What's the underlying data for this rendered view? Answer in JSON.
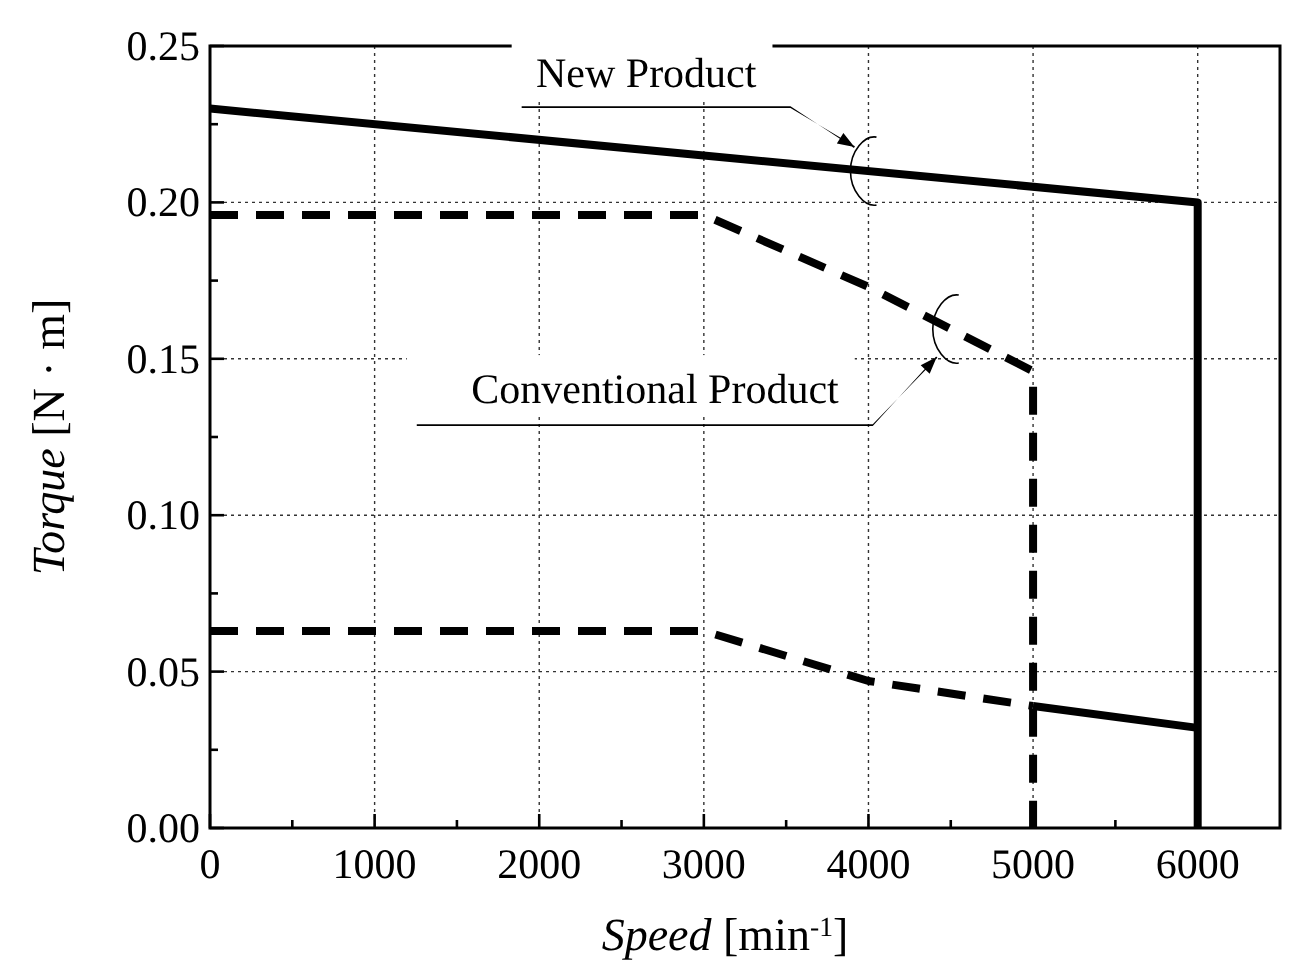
{
  "chart_data": {
    "type": "line",
    "xlabel": "Speed [min$^{-1}$]",
    "ylabel": "Torque [N · m]",
    "xlim": [
      0,
      6500
    ],
    "ylim": [
      0,
      0.25
    ],
    "xticks": [
      0,
      {
        "value": 500,
        "label": null
      },
      1000,
      {
        "value": 1500,
        "label": null
      },
      2000,
      {
        "value": 2500,
        "label": null
      },
      3000,
      {
        "value": 3500,
        "label": null
      },
      4000,
      {
        "value": 4500,
        "label": null
      },
      5000,
      {
        "value": 5500,
        "label": null
      },
      6000
    ],
    "yticks": [
      {
        "value": 0,
        "label": "0.00"
      },
      {
        "value": 0.025,
        "label": null
      },
      0.05,
      {
        "value": 0.075,
        "label": null
      },
      {
        "value": 0.1,
        "label": "0.10"
      },
      {
        "value": 0.125,
        "label": null
      },
      0.15,
      {
        "value": 0.175,
        "label": null
      },
      {
        "value": 0.2,
        "label": "0.20"
      },
      {
        "value": 0.225,
        "label": null
      },
      0.25
    ],
    "grid": true,
    "marker": "none",
    "series": [
      {
        "name": "New Product",
        "color": "#000000",
        "line_style": "solid",
        "x": [
          0,
          6000,
          6000
        ],
        "values": [
          0.23,
          0.2,
          0
        ]
      },
      {
        "color": "#000000",
        "line_style": "solid",
        "x": [
          5000,
          6000
        ],
        "values": [
          0.039,
          0.032
        ]
      },
      {
        "name": "Conventional Product",
        "color": "#000000",
        "line_style": "dashed",
        "x": [
          0,
          3000,
          4000,
          5000,
          5000
        ],
        "values": [
          0.196,
          0.196,
          0.173,
          0.146,
          0
        ]
      },
      {
        "color": "#000000",
        "line_style": "dashed",
        "x": [
          0,
          3000,
          4000,
          5000
        ],
        "values": [
          0.063,
          0.063,
          0.047,
          0.039
        ]
      }
    ]
  }
}
